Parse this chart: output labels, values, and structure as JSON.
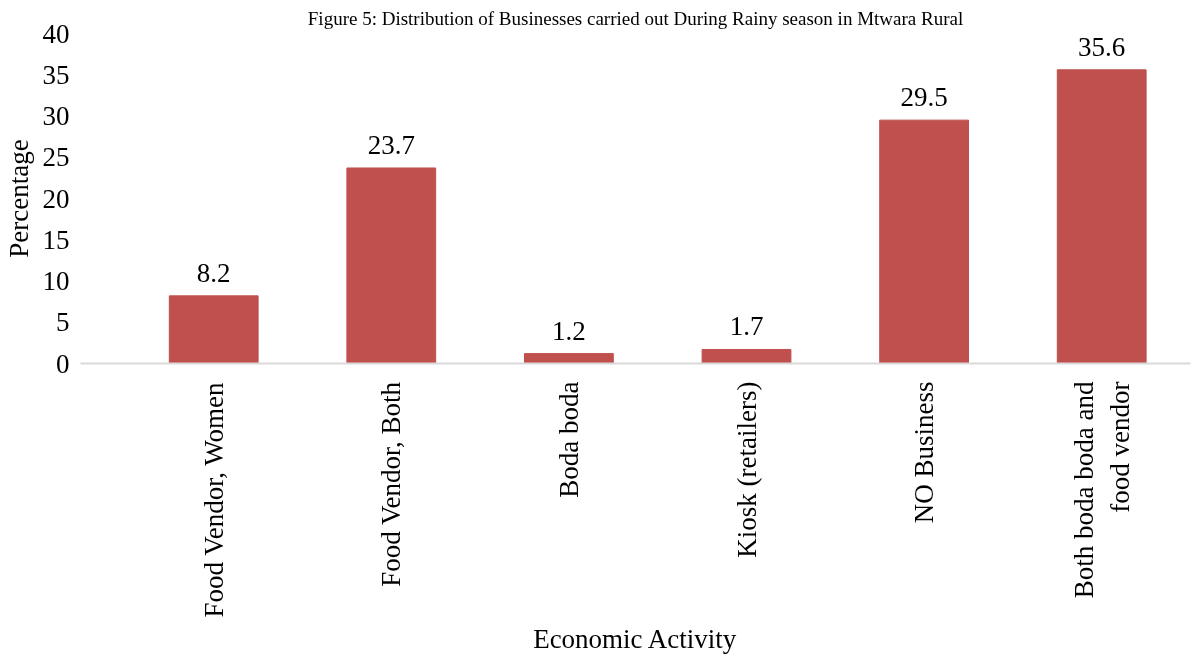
{
  "chart_data": {
    "type": "bar",
    "title": "Figure 5: Distribution of Businesses carried out During Rainy season in Mtwara Rural",
    "xlabel": "Economic Activity",
    "ylabel": "Percentage",
    "categories": [
      "Food Vendor, Women",
      "Food Vendor, Both",
      "Boda boda",
      "Kiosk (retailers)",
      "NO Business",
      "Both boda boda and food vendor"
    ],
    "values": [
      8.2,
      23.7,
      1.2,
      1.7,
      29.5,
      35.6
    ],
    "color": "#c0504d",
    "ylim": [
      0,
      40
    ],
    "yticks": [
      0,
      5,
      10,
      15,
      20,
      25,
      30,
      35,
      40
    ],
    "grid": false,
    "data_labels": true
  }
}
